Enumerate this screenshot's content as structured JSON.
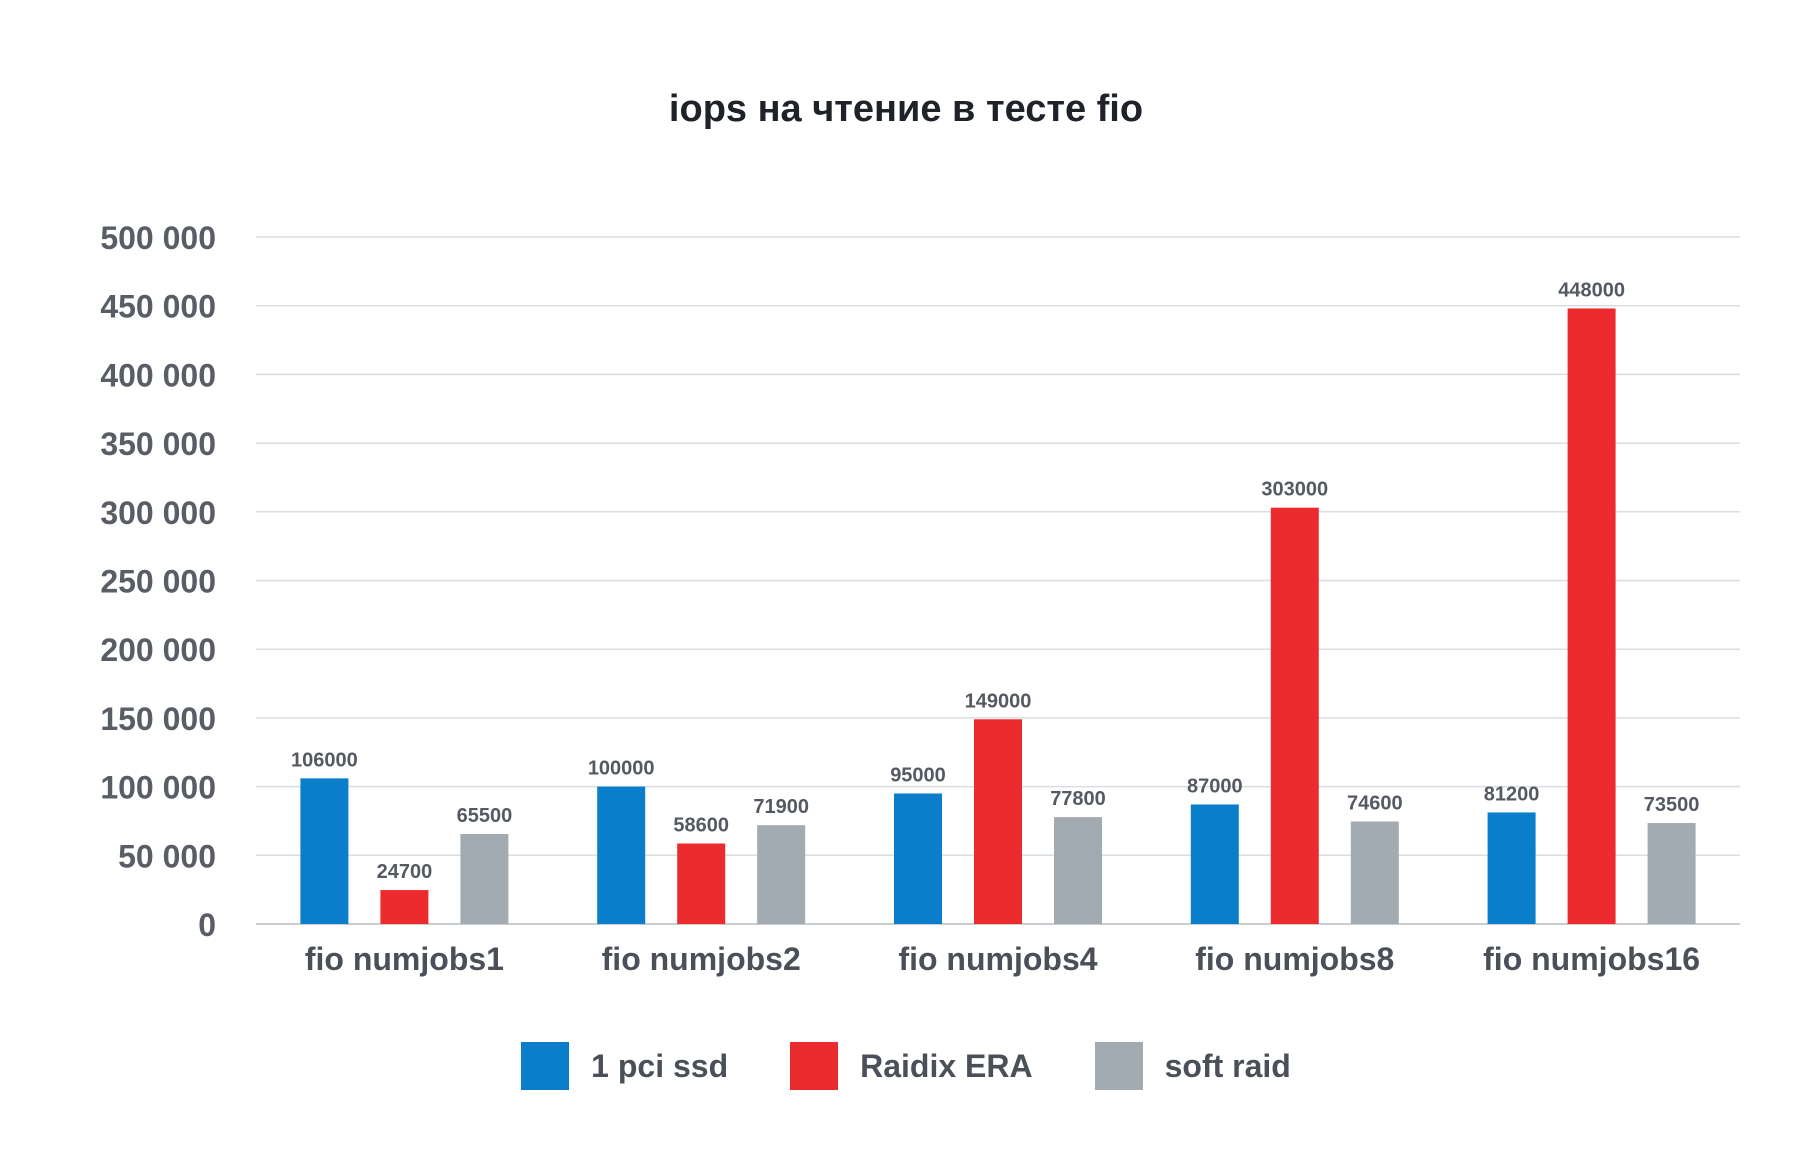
{
  "chart_data": {
    "type": "bar",
    "title": "iops на чтение в тесте fio",
    "xlabel": "",
    "ylabel": "",
    "categories": [
      "fio numjobs1",
      "fio numjobs2",
      "fio numjobs4",
      "fio numjobs8",
      "fio numjobs16"
    ],
    "series": [
      {
        "name": "1 pci ssd",
        "color": "#0a7ecb",
        "values": [
          106000,
          100000,
          95000,
          87000,
          81200
        ]
      },
      {
        "name": "Raidix ERA",
        "color": "#ec2b2e",
        "values": [
          24700,
          58600,
          149000,
          303000,
          448000
        ]
      },
      {
        "name": "soft raid",
        "color": "#a2aab2",
        "values": [
          65500,
          71900,
          77800,
          74600,
          73500
        ]
      }
    ],
    "ylim": [
      0,
      500000
    ],
    "yticks": [
      "0",
      "50 000",
      "100 000",
      "150 000",
      "200 000",
      "250 000",
      "300 000",
      "350 000",
      "400 000",
      "450 000",
      "500 000"
    ],
    "grid": true,
    "legend_position": "bottom"
  }
}
